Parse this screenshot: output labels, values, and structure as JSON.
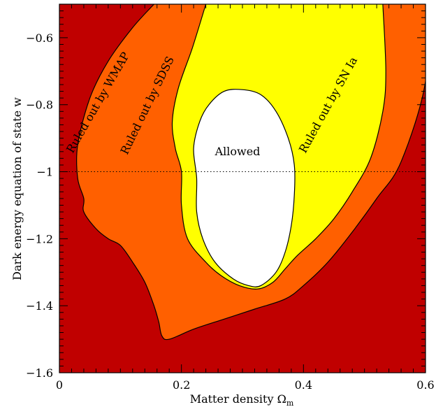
{
  "chart_data": {
    "type": "area",
    "title": "",
    "xlabel": "Matter density Ω",
    "xlabel_subscript": "m",
    "ylabel": "Dark energy equation of state w",
    "xlim": [
      0,
      0.6
    ],
    "ylim": [
      -1.6,
      -0.5
    ],
    "x_ticks": [
      0,
      0.2,
      0.4,
      0.6
    ],
    "x_tick_labels": [
      "0",
      "0.2",
      "0.4",
      "0.6"
    ],
    "y_ticks": [
      -1.6,
      -1.4,
      -1.2,
      -1,
      -0.8,
      -0.6
    ],
    "y_tick_labels": [
      "−1.6",
      "−1.4",
      "−1.2",
      "−1",
      "−0.8",
      "−0.6"
    ],
    "x_minor_step": 0.02,
    "y_minor_step": 0.02,
    "reference_line": {
      "y": -1,
      "style": "dotted"
    },
    "colors": {
      "wmap": "#c00000",
      "sdss": "#ff6000",
      "sn": "#ffff00",
      "allowed": "#ffffff",
      "outline": "#000000"
    },
    "labels": {
      "wmap": "Ruled out by WMAP",
      "sdss": "Ruled out by SDSS",
      "sn": "Ruled out by SN Ia",
      "allowed": "Allowed"
    },
    "regions": {
      "wmap_boundary": [
        [
          0.155,
          -0.5
        ],
        [
          0.12,
          -0.57
        ],
        [
          0.08,
          -0.67
        ],
        [
          0.05,
          -0.78
        ],
        [
          0.03,
          -0.92
        ],
        [
          0.03,
          -1.02
        ],
        [
          0.04,
          -1.08
        ],
        [
          0.04,
          -1.12
        ],
        [
          0.06,
          -1.17
        ],
        [
          0.08,
          -1.2
        ],
        [
          0.1,
          -1.22
        ],
        [
          0.12,
          -1.27
        ],
        [
          0.14,
          -1.33
        ],
        [
          0.155,
          -1.4
        ],
        [
          0.163,
          -1.45
        ],
        [
          0.168,
          -1.49
        ],
        [
          0.18,
          -1.5
        ],
        [
          0.22,
          -1.47
        ],
        [
          0.27,
          -1.44
        ],
        [
          0.32,
          -1.41
        ],
        [
          0.37,
          -1.38
        ],
        [
          0.4,
          -1.34
        ],
        [
          0.44,
          -1.27
        ],
        [
          0.48,
          -1.18
        ],
        [
          0.52,
          -1.08
        ],
        [
          0.56,
          -0.97
        ],
        [
          0.6,
          -0.73
        ],
        [
          0.6,
          -0.5
        ]
      ],
      "sdss_boundary": [
        [
          0.24,
          -0.5
        ],
        [
          0.218,
          -0.63
        ],
        [
          0.195,
          -0.75
        ],
        [
          0.185,
          -0.85
        ],
        [
          0.19,
          -0.93
        ],
        [
          0.2,
          -1.0
        ],
        [
          0.2,
          -1.1
        ],
        [
          0.21,
          -1.2
        ],
        [
          0.24,
          -1.27
        ],
        [
          0.265,
          -1.31
        ],
        [
          0.295,
          -1.34
        ],
        [
          0.325,
          -1.35
        ],
        [
          0.35,
          -1.33
        ],
        [
          0.37,
          -1.29
        ],
        [
          0.39,
          -1.25
        ],
        [
          0.42,
          -1.2
        ],
        [
          0.45,
          -1.14
        ],
        [
          0.48,
          -1.06
        ],
        [
          0.51,
          -0.96
        ],
        [
          0.53,
          -0.82
        ],
        [
          0.535,
          -0.7
        ],
        [
          0.53,
          -0.5
        ]
      ],
      "allowed_boundary": [
        [
          0.27,
          -0.76
        ],
        [
          0.245,
          -0.8
        ],
        [
          0.23,
          -0.85
        ],
        [
          0.22,
          -0.93
        ],
        [
          0.225,
          -1.02
        ],
        [
          0.225,
          -1.12
        ],
        [
          0.235,
          -1.2
        ],
        [
          0.255,
          -1.27
        ],
        [
          0.285,
          -1.32
        ],
        [
          0.31,
          -1.34
        ],
        [
          0.33,
          -1.34
        ],
        [
          0.355,
          -1.3
        ],
        [
          0.37,
          -1.24
        ],
        [
          0.38,
          -1.16
        ],
        [
          0.385,
          -1.07
        ],
        [
          0.385,
          -0.98
        ],
        [
          0.375,
          -0.9
        ],
        [
          0.355,
          -0.82
        ],
        [
          0.33,
          -0.77
        ],
        [
          0.3,
          -0.755
        ]
      ]
    }
  }
}
